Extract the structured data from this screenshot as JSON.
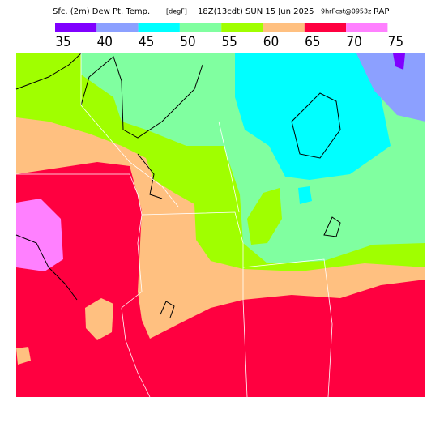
{
  "header": {
    "title": "Sfc. (2m) Dew Pt. Temp.",
    "units": "[degF]",
    "time": "18Z(13cdt) SUN 15 Jun 2025",
    "forecast": "9hrFcst@0953z",
    "model": "RAP"
  },
  "legend": {
    "ticks": [
      35,
      40,
      45,
      50,
      55,
      60,
      65,
      70,
      75
    ],
    "colors": [
      "#8000ff",
      "#8ca0ff",
      "#00ffff",
      "#80ffa0",
      "#a0ff00",
      "#ffc080",
      "#ff0040",
      "#ff80ff"
    ]
  }
}
